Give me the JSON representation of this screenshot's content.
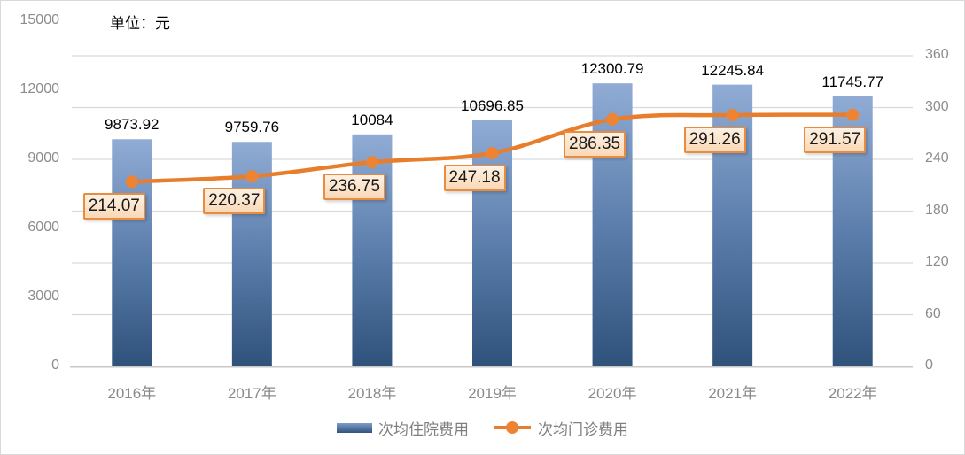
{
  "chart": {
    "unit_label": "单位：元",
    "background": "#FFFFFF",
    "border_color": "#D9D9D9"
  },
  "chart_data": {
    "type": "combo-bar-line",
    "title": "",
    "unit_label": "单位：元",
    "categories": [
      "2016年",
      "2017年",
      "2018年",
      "2019年",
      "2020年",
      "2021年",
      "2022年"
    ],
    "series": [
      {
        "name": "次均住院费用",
        "type": "bar",
        "axis": "left",
        "values": [
          9873.92,
          9759.76,
          10084,
          10696.85,
          12300.79,
          12245.84,
          11745.77
        ],
        "data_labels": [
          "9873.92",
          "9759.76",
          "10084",
          "10696.85",
          "12300.79",
          "12245.84",
          "11745.77"
        ],
        "color_top": "#90ACD5",
        "color_mid": "#5C7EAC",
        "color_bottom": "#2F527B"
      },
      {
        "name": "次均门诊费用",
        "type": "line",
        "axis": "right",
        "values": [
          214.07,
          220.37,
          236.75,
          247.18,
          286.35,
          291.26,
          291.57
        ],
        "data_labels": [
          "214.07",
          "220.37",
          "236.75",
          "247.18",
          "286.35",
          "291.26",
          "291.57"
        ],
        "line_color": "#E87D2C",
        "marker_color": "#EE8433",
        "label_border": "#E88C3F",
        "label_fill_top": "#FDF1E3",
        "label_fill_bottom": "#FAD8B6"
      }
    ],
    "left_axis": {
      "min": 0,
      "max": 15000,
      "step": 3000,
      "tick_labels": [
        "0",
        "3000",
        "6000",
        "9000",
        "12000",
        "15000"
      ]
    },
    "right_axis": {
      "min": 0,
      "step": 60,
      "scale_max": 400,
      "tick_labels": [
        "0",
        "60",
        "120",
        "180",
        "240",
        "300",
        "360"
      ]
    },
    "grid": {
      "horizontal": true,
      "aligned_to": "right-axis",
      "color": "#D9D9D9"
    },
    "axis_line_color": "#C8C8C8",
    "axis_text_color": "#8C8C8C",
    "legend_position": "bottom",
    "legend_entries": [
      "次均住院费用",
      "次均门诊费用"
    ]
  }
}
